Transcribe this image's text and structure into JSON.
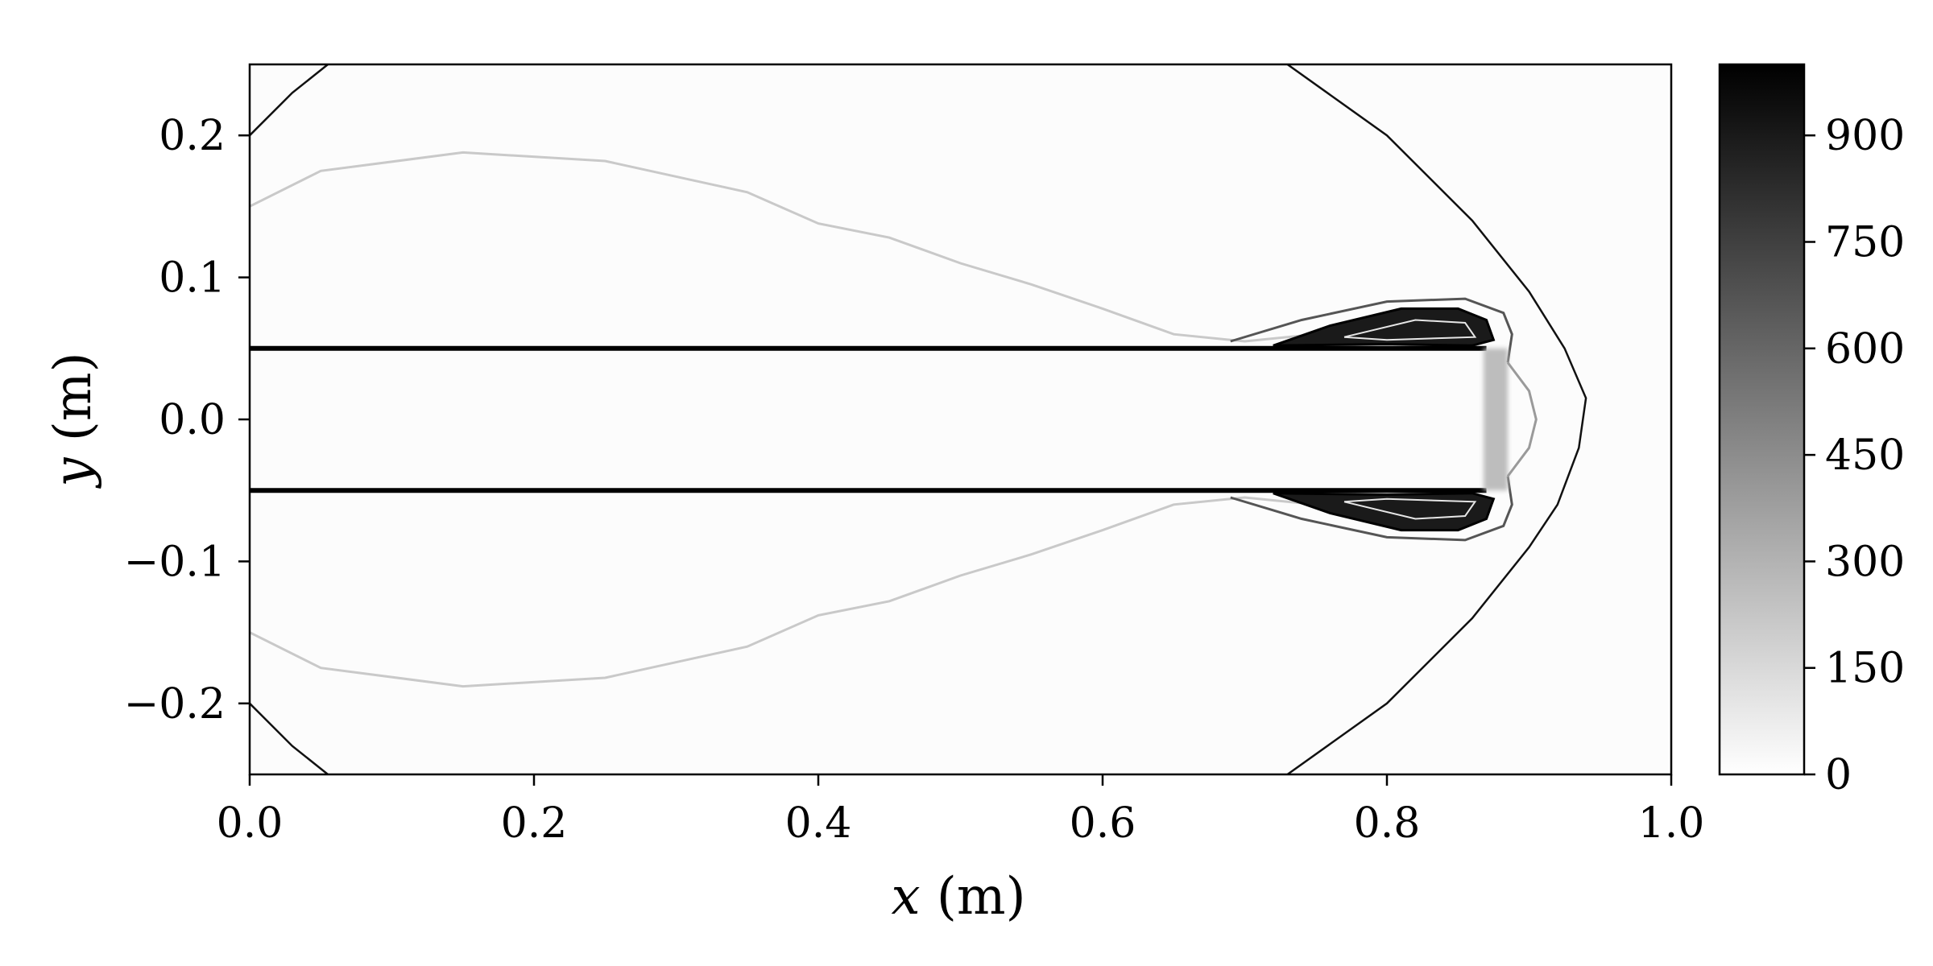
{
  "chart_data": {
    "type": "heatmap",
    "title": "",
    "xlabel": "x (m)",
    "ylabel": "y (m)",
    "xlabel_parts": {
      "var": "x",
      "unit": " (m)"
    },
    "ylabel_parts": {
      "var": "y",
      "unit": " (m)"
    },
    "xlim": [
      0.0,
      1.0
    ],
    "ylim": [
      -0.25,
      0.25
    ],
    "x_ticks": [
      0.0,
      0.2,
      0.4,
      0.6,
      0.8,
      1.0
    ],
    "x_tick_labels": [
      "0.0",
      "0.2",
      "0.4",
      "0.6",
      "0.8",
      "1.0"
    ],
    "y_ticks": [
      0.2,
      0.1,
      0.0,
      -0.1,
      -0.2
    ],
    "y_tick_labels": [
      "0.2",
      "0.1",
      "0.0",
      "−0.1",
      "−0.2"
    ],
    "colorbar": {
      "min": 0,
      "max": 1000,
      "colormap": "gray_r",
      "ticks": [
        0,
        150,
        300,
        450,
        600,
        750,
        900
      ],
      "tick_labels": [
        "0",
        "150",
        "300",
        "450",
        "600",
        "750",
        "900"
      ]
    },
    "colors": {
      "low": "#ffffff",
      "high": "#000000"
    },
    "features": {
      "walls": [
        {
          "y": 0.05,
          "x_start": 0.0,
          "x_end": 0.87
        },
        {
          "y": -0.05,
          "x_start": 0.0,
          "x_end": 0.87
        }
      ],
      "bow_shock": [
        [
          0.73,
          0.25
        ],
        [
          0.8,
          0.2
        ],
        [
          0.86,
          0.14
        ],
        [
          0.9,
          0.09
        ],
        [
          0.925,
          0.05
        ],
        [
          0.94,
          0.015
        ],
        [
          0.935,
          -0.02
        ],
        [
          0.92,
          -0.06
        ],
        [
          0.9,
          -0.09
        ],
        [
          0.86,
          -0.14
        ],
        [
          0.8,
          -0.2
        ],
        [
          0.73,
          -0.25
        ]
      ],
      "left_shock": [
        [
          0.055,
          0.25
        ],
        [
          0.03,
          0.23
        ],
        [
          0.0,
          0.2
        ]
      ],
      "contact_surface": [
        [
          0.0,
          0.15
        ],
        [
          0.05,
          0.175
        ],
        [
          0.15,
          0.188
        ],
        [
          0.25,
          0.182
        ],
        [
          0.35,
          0.16
        ],
        [
          0.4,
          0.138
        ],
        [
          0.45,
          0.128
        ],
        [
          0.5,
          0.11
        ],
        [
          0.55,
          0.095
        ],
        [
          0.6,
          0.078
        ],
        [
          0.65,
          0.06
        ],
        [
          0.7,
          0.055
        ],
        [
          0.75,
          0.06
        ]
      ]
    }
  }
}
